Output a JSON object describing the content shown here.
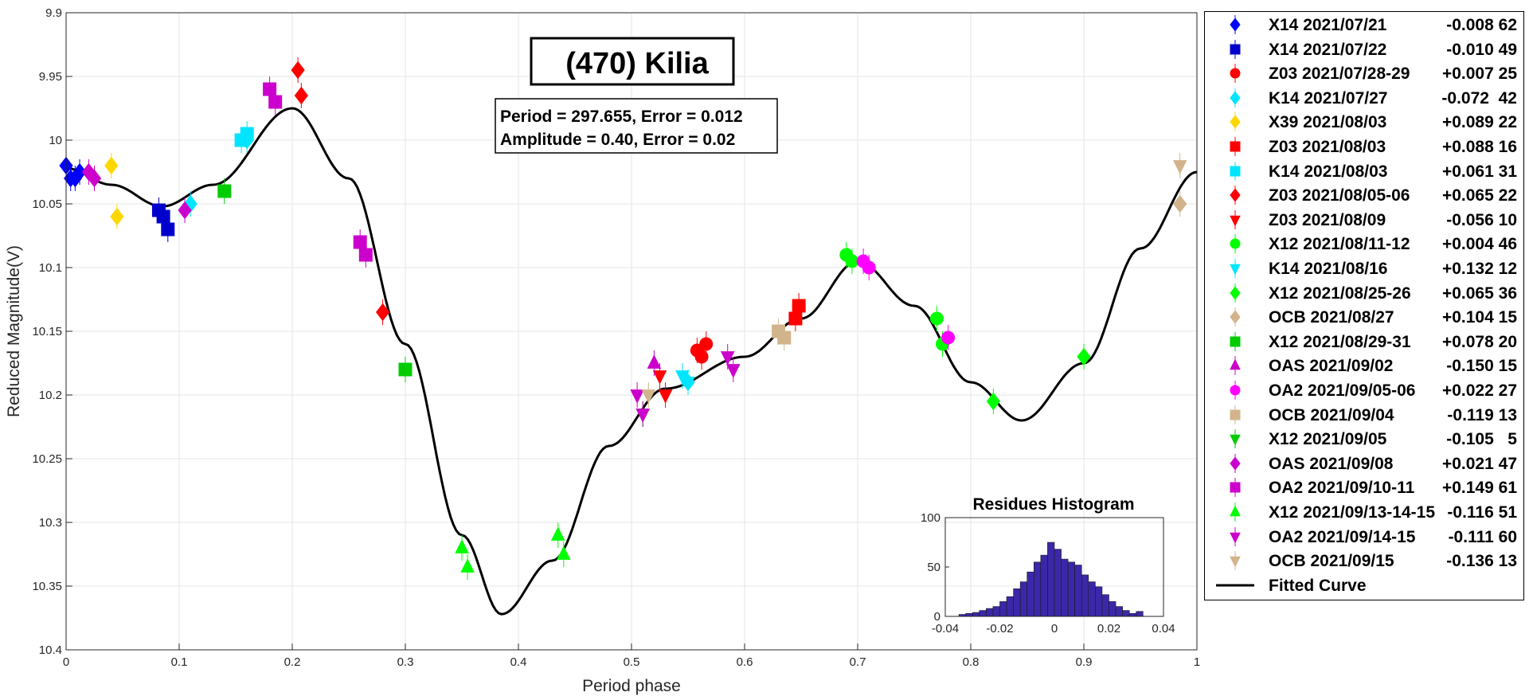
{
  "chart_data": {
    "type": "scatter",
    "title": "(470) Kilia",
    "info_lines": [
      "Period =  297.655, Error = 0.012",
      "Amplitude = 0.40, Error = 0.02"
    ],
    "xlabel": "Period phase",
    "ylabel": "Reduced Magnitude(V)",
    "xlim": [
      0,
      1
    ],
    "ylim": [
      9.9,
      10.4
    ],
    "y_reversed": true,
    "grid": true,
    "legend_placement": "outside-right",
    "x_ticks": [
      "0",
      "0.1",
      "0.2",
      "0.3",
      "0.4",
      "0.5",
      "0.6",
      "0.7",
      "0.8",
      "0.9",
      "1"
    ],
    "y_ticks": [
      "9.9",
      "9.95",
      "10",
      "10.05",
      "10.1",
      "10.15",
      "10.2",
      "10.25",
      "10.3",
      "10.35",
      "10.4"
    ],
    "series": [
      {
        "name": "X14 2021/07/21",
        "offset": "-0.008",
        "count": "62",
        "color": "#0000ff",
        "marker": "diamond",
        "x": [
          0.0,
          0.004,
          0.008,
          0.012
        ],
        "y": [
          10.02,
          10.03,
          10.03,
          10.025
        ]
      },
      {
        "name": "X14 2021/07/22",
        "offset": "-0.010",
        "count": "49",
        "color": "#0000cc",
        "marker": "square",
        "x": [
          0.082,
          0.086,
          0.09
        ],
        "y": [
          10.055,
          10.06,
          10.07
        ]
      },
      {
        "name": "Z03 2021/07/28-29",
        "offset": "+0.007",
        "count": "25",
        "color": "#ff0000",
        "marker": "circle",
        "x": [
          0.558,
          0.562,
          0.566
        ],
        "y": [
          10.165,
          10.17,
          10.16
        ]
      },
      {
        "name": "K14 2021/07/27",
        "offset": "-0.072",
        "count": " 42",
        "color": "#00e5ff",
        "marker": "diamond",
        "x": [
          0.11,
          0.16,
          0.55
        ],
        "y": [
          10.05,
          10.0,
          10.19
        ]
      },
      {
        "name": "X39 2021/08/03",
        "offset": "+0.089",
        "count": "22",
        "color": "#ffd700",
        "marker": "diamond",
        "x": [
          0.04,
          0.045
        ],
        "y": [
          10.02,
          10.06
        ]
      },
      {
        "name": "Z03 2021/08/03",
        "offset": "+0.088",
        "count": "16",
        "color": "#ff0000",
        "marker": "square",
        "x": [
          0.645,
          0.648
        ],
        "y": [
          10.14,
          10.13
        ]
      },
      {
        "name": "K14 2021/08/03",
        "offset": "+0.061",
        "count": "31",
        "color": "#00e5ff",
        "marker": "square",
        "x": [
          0.155,
          0.16
        ],
        "y": [
          10.0,
          9.995
        ]
      },
      {
        "name": "Z03 2021/08/05-06",
        "offset": "+0.065",
        "count": "22",
        "color": "#ff0000",
        "marker": "diamond",
        "x": [
          0.205,
          0.208,
          0.28
        ],
        "y": [
          9.945,
          9.965,
          10.135
        ]
      },
      {
        "name": "Z03 2021/08/09",
        "offset": "-0.056",
        "count": "10",
        "color": "#ff0000",
        "marker": "triangle-down",
        "x": [
          0.525,
          0.53
        ],
        "y": [
          10.185,
          10.2
        ]
      },
      {
        "name": "X12 2021/08/11-12",
        "offset": "+0.004",
        "count": "46",
        "color": "#00ff00",
        "marker": "circle",
        "x": [
          0.69,
          0.695,
          0.77,
          0.775
        ],
        "y": [
          10.09,
          10.095,
          10.14,
          10.16
        ]
      },
      {
        "name": "K14 2021/08/16",
        "offset": "+0.132",
        "count": "12",
        "color": "#00e5ff",
        "marker": "triangle-down",
        "x": [
          0.545,
          0.55
        ],
        "y": [
          10.185,
          10.19
        ]
      },
      {
        "name": "X12 2021/08/25-26",
        "offset": "+0.065",
        "count": "36",
        "color": "#00ff00",
        "marker": "diamond",
        "x": [
          0.82,
          0.9
        ],
        "y": [
          10.205,
          10.17
        ]
      },
      {
        "name": "OCB 2021/08/27",
        "offset": "+0.104",
        "count": "15",
        "color": "#d2b48c",
        "marker": "diamond",
        "x": [
          0.985
        ],
        "y": [
          10.05
        ]
      },
      {
        "name": "X12 2021/08/29-31",
        "offset": "+0.078",
        "count": "20",
        "color": "#00cc00",
        "marker": "square",
        "x": [
          0.14,
          0.3
        ],
        "y": [
          10.04,
          10.18
        ]
      },
      {
        "name": "OAS 2021/09/02",
        "offset": "-0.150",
        "count": "15",
        "color": "#cc00cc",
        "marker": "triangle",
        "x": [
          0.52
        ],
        "y": [
          10.175
        ]
      },
      {
        "name": "OA2 2021/09/05-06",
        "offset": "+0.022",
        "count": "27",
        "color": "#ff00ff",
        "marker": "circle",
        "x": [
          0.705,
          0.71,
          0.78
        ],
        "y": [
          10.095,
          10.1,
          10.155
        ]
      },
      {
        "name": "OCB 2021/09/04",
        "offset": "-0.119",
        "count": "13",
        "color": "#d2b48c",
        "marker": "square",
        "x": [
          0.63,
          0.635
        ],
        "y": [
          10.15,
          10.155
        ]
      },
      {
        "name": "X12 2021/09/05",
        "offset": "-0.105",
        "count": "  5",
        "color": "#00cc00",
        "marker": "triangle-down",
        "x": [
          0.51
        ],
        "y": [
          10.215
        ]
      },
      {
        "name": "OAS 2021/09/08",
        "offset": "+0.021",
        "count": "47",
        "color": "#cc00cc",
        "marker": "diamond",
        "x": [
          0.02,
          0.025,
          0.105
        ],
        "y": [
          10.025,
          10.03,
          10.055
        ]
      },
      {
        "name": "OA2 2021/09/10-11",
        "offset": "+0.149",
        "count": "61",
        "color": "#cc00cc",
        "marker": "square",
        "x": [
          0.18,
          0.185,
          0.26,
          0.265
        ],
        "y": [
          9.96,
          9.97,
          10.08,
          10.09
        ]
      },
      {
        "name": "X12 2021/09/13-14-15",
        "offset": "-0.116",
        "count": "51",
        "color": "#00ff00",
        "marker": "triangle",
        "x": [
          0.35,
          0.355,
          0.435,
          0.44
        ],
        "y": [
          10.32,
          10.335,
          10.31,
          10.325
        ]
      },
      {
        "name": "OA2 2021/09/14-15",
        "offset": "-0.111",
        "count": "60",
        "color": "#cc00cc",
        "marker": "triangle-down",
        "x": [
          0.505,
          0.51,
          0.585,
          0.59
        ],
        "y": [
          10.2,
          10.215,
          10.17,
          10.18
        ]
      },
      {
        "name": "OCB 2021/09/15",
        "offset": "-0.136",
        "count": "13",
        "color": "#d2b48c",
        "marker": "triangle-down",
        "x": [
          0.515,
          0.985
        ],
        "y": [
          10.2,
          10.02
        ]
      }
    ],
    "fitted_curve_label": "Fitted Curve",
    "fitted_curve_color": "#000000",
    "histogram": {
      "type": "bar",
      "title": "Residues Histogram",
      "xlim": [
        -0.04,
        0.04
      ],
      "ylim": [
        0,
        100
      ],
      "x_ticks": [
        "-0.04",
        "-0.02",
        "0",
        "0.02",
        "0.04"
      ],
      "y_ticks": [
        "0",
        "50",
        "100"
      ],
      "bin_width": 0.0025,
      "bin_start": -0.035,
      "counts": [
        2,
        3,
        4,
        6,
        8,
        10,
        15,
        20,
        28,
        35,
        45,
        55,
        62,
        75,
        68,
        58,
        55,
        52,
        42,
        35,
        30,
        22,
        15,
        10,
        6,
        3,
        5
      ],
      "bar_color": "#3a28a8"
    }
  }
}
